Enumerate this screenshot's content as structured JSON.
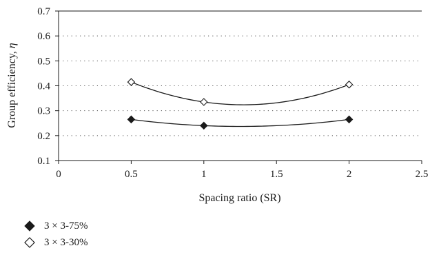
{
  "chart_data": {
    "type": "scatter",
    "xlabel": "Spacing ratio (SR)",
    "ylabel_main": "Group efficiency, ",
    "ylabel_symbol": "η",
    "xlim": [
      0,
      2.5
    ],
    "ylim": [
      0.1,
      0.7
    ],
    "x_ticks": [
      "0",
      "0.5",
      "1",
      "1.5",
      "2",
      "2.5"
    ],
    "y_ticks": [
      "0.1",
      "0.2",
      "0.3",
      "0.4",
      "0.5",
      "0.6",
      "0.7"
    ],
    "grid": "horizontal-dotted",
    "legend_position": "bottom-left",
    "series": [
      {
        "name": "3 × 3-75%",
        "marker": "filled-diamond",
        "color": "#1a1a1a",
        "x": [
          0.5,
          1,
          2
        ],
        "y": [
          0.265,
          0.24,
          0.265
        ]
      },
      {
        "name": "3 × 3-30%",
        "marker": "open-diamond",
        "color": "#1a1a1a",
        "x": [
          0.5,
          1,
          2
        ],
        "y": [
          0.415,
          0.335,
          0.405
        ]
      }
    ]
  }
}
